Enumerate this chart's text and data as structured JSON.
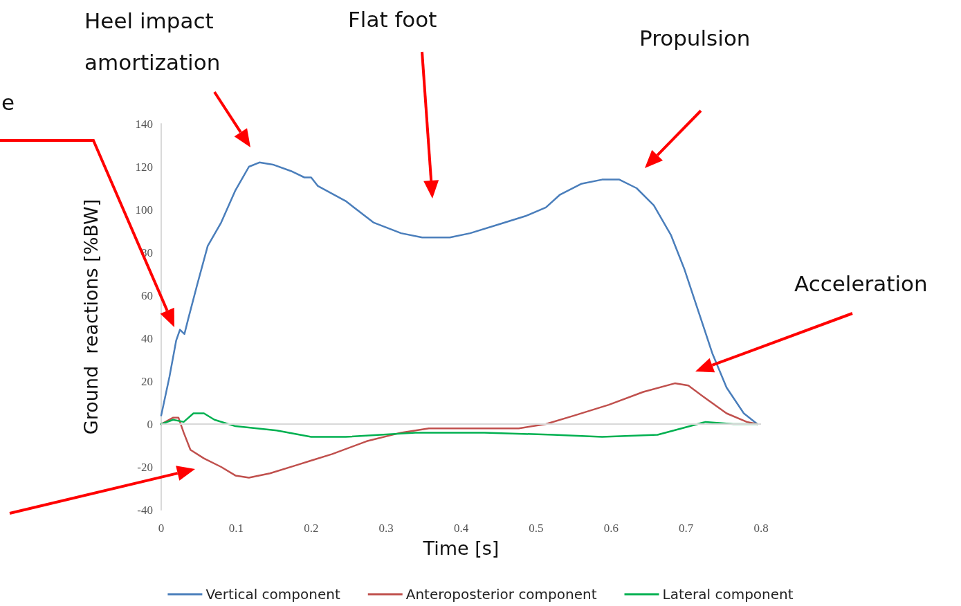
{
  "chart_data": {
    "type": "line",
    "xlabel": "Time [s]",
    "ylabel": "Ground  reactions [%BW]",
    "xlim": [
      0,
      0.8
    ],
    "xticks": [
      0,
      0.1,
      0.2,
      0.3,
      0.4,
      0.5,
      0.6,
      0.7,
      0.8
    ],
    "ylim": [
      -40,
      140
    ],
    "yticks": [
      -40,
      -20,
      0,
      20,
      40,
      60,
      80,
      100,
      120,
      140
    ],
    "grid": false,
    "legend": "bottom",
    "marker": "none",
    "line_style": "solid",
    "annotations": [
      "e",
      "Heel impact amortization",
      "Flat foot",
      "Propulsion",
      "Acceleration"
    ],
    "ref_lines": [
      {
        "axis": "y",
        "value": 0,
        "color": "#d9d9d9"
      }
    ],
    "series": [
      {
        "name": "Vertical component",
        "color": "#4a7ebb",
        "x": [
          0,
          0.011,
          0.02,
          0.025,
          0.031,
          0.036,
          0.048,
          0.062,
          0.08,
          0.099,
          0.117,
          0.131,
          0.149,
          0.173,
          0.191,
          0.2,
          0.209,
          0.246,
          0.283,
          0.32,
          0.348,
          0.385,
          0.412,
          0.449,
          0.486,
          0.513,
          0.532,
          0.56,
          0.588,
          0.611,
          0.634,
          0.657,
          0.68,
          0.698,
          0.717,
          0.735,
          0.754,
          0.777,
          0.795
        ],
        "values": [
          4,
          22,
          39,
          44,
          42,
          49,
          65,
          83,
          94,
          109,
          120,
          122,
          121,
          118,
          115,
          115,
          111,
          104,
          94,
          89,
          87,
          87,
          89,
          93,
          97,
          101,
          107,
          112,
          114,
          114,
          110,
          102,
          88,
          72,
          52,
          33,
          17,
          5,
          0
        ]
      },
      {
        "name": "Anteroposterior component",
        "color": "#c0504d",
        "x": [
          0,
          0.016,
          0.023,
          0.03,
          0.039,
          0.057,
          0.08,
          0.099,
          0.117,
          0.145,
          0.182,
          0.2,
          0.228,
          0.274,
          0.32,
          0.357,
          0.412,
          0.477,
          0.513,
          0.551,
          0.597,
          0.643,
          0.685,
          0.703,
          0.726,
          0.754,
          0.781,
          0.795
        ],
        "values": [
          0,
          3,
          3,
          -4,
          -12,
          -16,
          -20,
          -24,
          -25,
          -23,
          -19,
          -17,
          -14,
          -8,
          -4,
          -2,
          -2,
          -2,
          0,
          4,
          9,
          15,
          19,
          18,
          12,
          5,
          1,
          0
        ]
      },
      {
        "name": "Lateral component",
        "color": "#00b050",
        "x": [
          0,
          0.016,
          0.03,
          0.043,
          0.057,
          0.071,
          0.099,
          0.154,
          0.2,
          0.246,
          0.339,
          0.431,
          0.523,
          0.588,
          0.662,
          0.694,
          0.726,
          0.763,
          0.795
        ],
        "values": [
          0,
          2,
          1,
          5,
          5,
          2,
          -1,
          -3,
          -6,
          -6,
          -4,
          -4,
          -5,
          -6,
          -5,
          -2,
          1,
          0,
          0
        ]
      }
    ]
  }
}
